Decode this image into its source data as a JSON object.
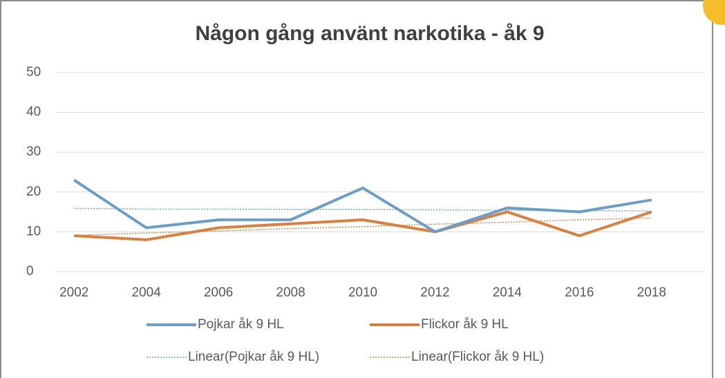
{
  "chart_data": {
    "type": "line",
    "title": "Någon gång använt narkotika - åk 9",
    "categories": [
      "2002",
      "2004",
      "2006",
      "2008",
      "2010",
      "2012",
      "2014",
      "2016",
      "2018"
    ],
    "series": [
      {
        "name": "Pojkar åk 9 HL",
        "color": "#6a9ec8",
        "dashed": false,
        "values": [
          23,
          11,
          13,
          13,
          21,
          10,
          16,
          15,
          18
        ]
      },
      {
        "name": "Flickor åk 9 HL",
        "color": "#d9803e",
        "dashed": false,
        "values": [
          9,
          8,
          11,
          12,
          13,
          10,
          15,
          9,
          15
        ]
      },
      {
        "name": "Linear(Pojkar åk 9 HL)",
        "color": "#6a9ec8",
        "dashed": true,
        "values": [
          15.9,
          15.7,
          15.7,
          15.6,
          15.6,
          15.5,
          15.4,
          15.3,
          15.2
        ]
      },
      {
        "name": "Linear(Flickor åk 9 HL)",
        "color": "#d9803e",
        "dashed": true,
        "values": [
          9.1,
          9.7,
          10.2,
          10.8,
          11.3,
          11.9,
          12.4,
          13.0,
          13.5
        ]
      }
    ],
    "ylim": [
      0,
      50
    ],
    "yticks": [
      0,
      10,
      20,
      30,
      40,
      50
    ],
    "grid": true,
    "legend": "bottom"
  }
}
